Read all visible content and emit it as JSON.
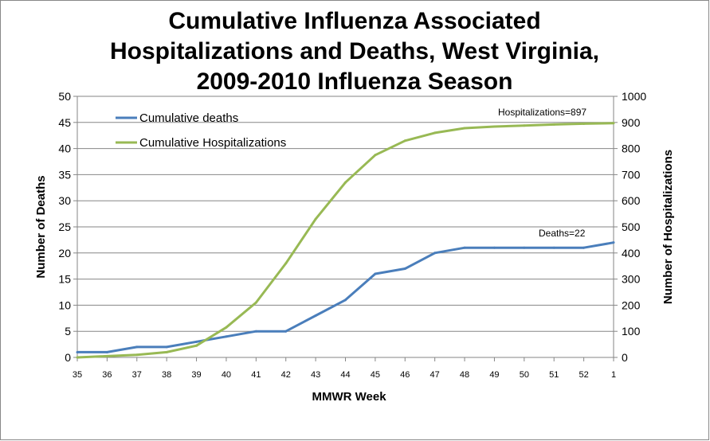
{
  "chart_data": {
    "type": "line",
    "title": [
      "Cumulative Influenza Associated",
      "Hospitalizations and Deaths, West Virginia,",
      "2009-2010 Influenza Season"
    ],
    "xlabel": "MMWR Week",
    "ylabel": "Number of Deaths",
    "y2label": "Number of Hospitalizations",
    "x": [
      "35",
      "36",
      "37",
      "38",
      "39",
      "40",
      "41",
      "42",
      "43",
      "44",
      "45",
      "46",
      "47",
      "48",
      "49",
      "50",
      "51",
      "52",
      "1"
    ],
    "ylim": [
      0,
      50
    ],
    "y2lim": [
      0,
      1000
    ],
    "yticks": [
      0,
      5,
      10,
      15,
      20,
      25,
      30,
      35,
      40,
      45,
      50
    ],
    "y2ticks": [
      0,
      100,
      200,
      300,
      400,
      500,
      600,
      700,
      800,
      900,
      1000
    ],
    "grid": true,
    "legend_placement": "top-left",
    "series": [
      {
        "name": "Cumulative deaths",
        "axis": "left",
        "color": "#4a7ebb",
        "values": [
          1,
          1,
          2,
          2,
          3,
          4,
          5,
          5,
          8,
          11,
          16,
          17,
          20,
          21,
          21,
          21,
          21,
          21,
          22
        ]
      },
      {
        "name": "Cumulative Hospitalizations",
        "axis": "right",
        "color": "#98b954",
        "values": [
          0,
          5,
          10,
          20,
          45,
          115,
          210,
          360,
          530,
          670,
          775,
          830,
          860,
          878,
          884,
          888,
          892,
          895,
          897
        ]
      }
    ],
    "annotations": [
      "Hospitalizations=897",
      "Deaths=22"
    ]
  }
}
